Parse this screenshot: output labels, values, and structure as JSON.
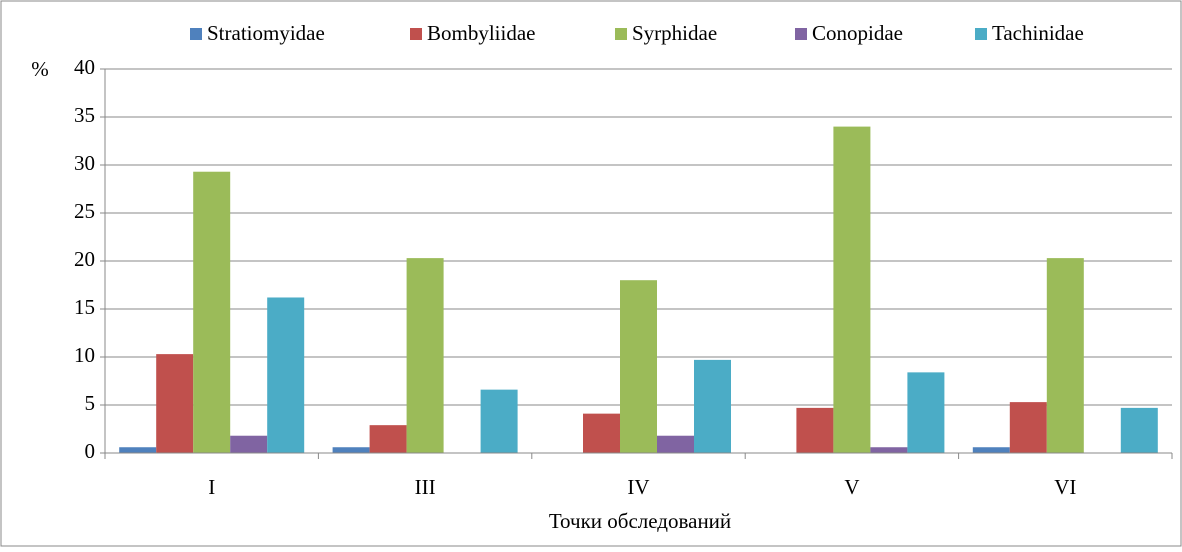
{
  "chart_data": {
    "type": "bar",
    "ylabel": "%",
    "xlabel": "Точки обследований",
    "categories": [
      "I",
      "III",
      "IV",
      "V",
      "VI"
    ],
    "series": [
      {
        "name": "Stratiomyidae",
        "color": "#4f81bd",
        "values": [
          0.6,
          0.6,
          0,
          0,
          0.6
        ]
      },
      {
        "name": "Bombyliidae",
        "color": "#c0504d",
        "values": [
          10.3,
          2.9,
          4.1,
          4.7,
          5.3
        ]
      },
      {
        "name": "Syrphidae",
        "color": "#9bbb59",
        "values": [
          29.3,
          20.3,
          18.0,
          34.0,
          20.3
        ]
      },
      {
        "name": "Conopidae",
        "color": "#8064a2",
        "values": [
          1.8,
          0,
          1.8,
          0.6,
          0
        ]
      },
      {
        "name": "Tachinidae",
        "color": "#4bacc6",
        "values": [
          16.2,
          6.6,
          9.7,
          8.4,
          4.7
        ]
      }
    ],
    "ylim": [
      0,
      40
    ],
    "yticks": [
      0,
      5,
      10,
      15,
      20,
      25,
      30,
      35,
      40
    ],
    "grid": true,
    "legend": "top"
  }
}
